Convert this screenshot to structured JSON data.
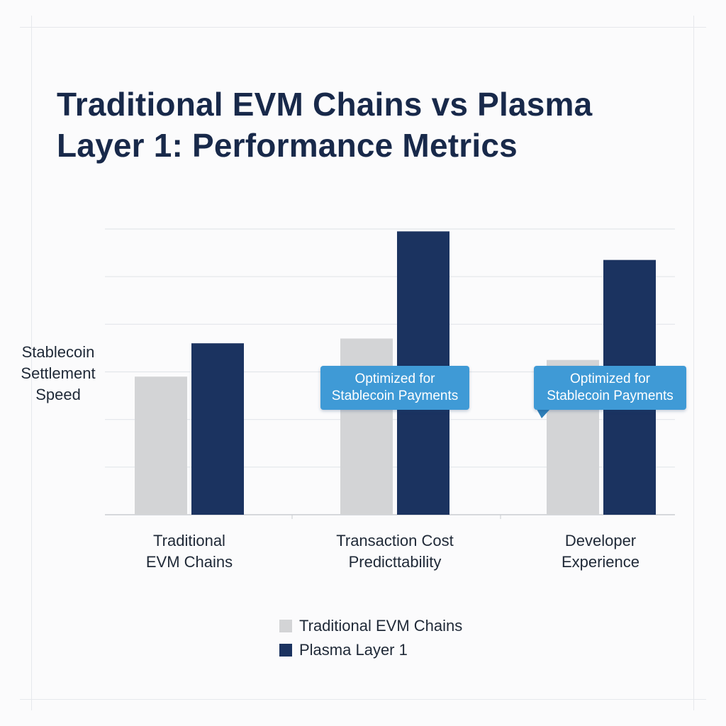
{
  "chart_data": {
    "type": "bar",
    "title": "Traditional EVM Chains vs Plasma Layer 1: Performance Metrics",
    "title_lines": [
      "Traditional EVM Chains vs Plasma",
      "Layer 1: Performance Metrics"
    ],
    "ylabel": "Stablecoin Settlement Speed",
    "ylabel_lines": [
      "Stablecoin",
      "Settlement",
      "Speed"
    ],
    "xlabel": "",
    "categories": [
      "Traditional EVM Chains",
      "Transaction Cost Predicttability",
      "Developer Experience"
    ],
    "category_lines": [
      [
        "Traditional",
        "EVM Chains"
      ],
      [
        "Transaction Cost",
        "Predicttability"
      ],
      [
        "Developer",
        "Experience"
      ]
    ],
    "ylim": [
      0,
      6
    ],
    "grid": true,
    "series": [
      {
        "name": "Traditional EVM Chains",
        "color": "#d3d4d6",
        "values": [
          2.9,
          3.7,
          3.25
        ]
      },
      {
        "name": "Plasma Layer 1",
        "color": "#1b3360",
        "values": [
          3.6,
          5.95,
          5.35
        ]
      }
    ],
    "annotations": [
      {
        "category_index": 1,
        "lines": [
          "Optimized for",
          "Stablecoin Payments"
        ]
      },
      {
        "category_index": 2,
        "lines": [
          "Optimized for",
          "Stablecoin Payments"
        ]
      }
    ],
    "legend": {
      "placement": "bottom-center",
      "entries": [
        "Traditional EVM Chains",
        "Plasma Layer 1"
      ]
    },
    "colors": {
      "title": "#18294a",
      "callout": "#3f9ad6",
      "grid": "#e3e6ea",
      "axis": "#c9ccd1"
    }
  }
}
